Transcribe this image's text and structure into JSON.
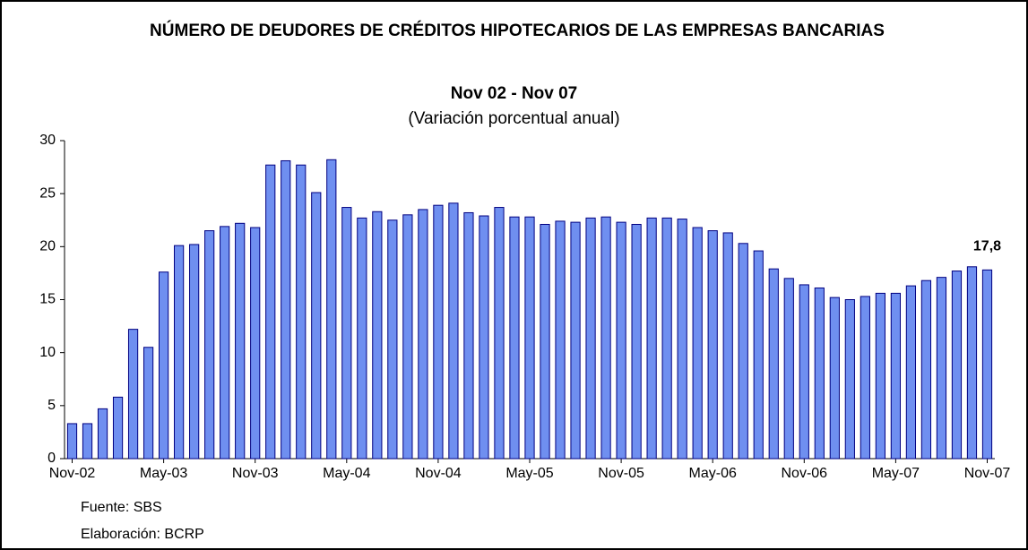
{
  "chart_data": {
    "type": "bar",
    "title": "NÚMERO DE DEUDORES DE CRÉDITOS HIPOTECARIOS DE LAS EMPRESAS BANCARIAS",
    "subtitle": "Nov 02 - Nov 07",
    "description": "(Variación porcentual anual)",
    "source": "Fuente: SBS",
    "credit": "Elaboración: BCRP",
    "categories": [
      "Nov-02",
      null,
      null,
      null,
      null,
      null,
      "May-03",
      null,
      null,
      null,
      null,
      null,
      "Nov-03",
      null,
      null,
      null,
      null,
      null,
      "May-04",
      null,
      null,
      null,
      null,
      null,
      "Nov-04",
      null,
      null,
      null,
      null,
      null,
      "May-05",
      null,
      null,
      null,
      null,
      null,
      "Nov-05",
      null,
      null,
      null,
      null,
      null,
      "May-06",
      null,
      null,
      null,
      null,
      null,
      "Nov-06",
      null,
      null,
      null,
      null,
      null,
      "May-07",
      null,
      null,
      null,
      null,
      null,
      "Nov-07"
    ],
    "values": [
      3.3,
      3.3,
      4.7,
      5.8,
      12.2,
      10.5,
      17.6,
      20.1,
      20.2,
      21.5,
      21.9,
      22.2,
      21.8,
      27.7,
      28.1,
      27.7,
      25.1,
      28.2,
      23.7,
      22.7,
      23.3,
      22.5,
      23.0,
      23.5,
      23.9,
      24.1,
      23.2,
      22.9,
      23.7,
      22.8,
      22.8,
      22.1,
      22.4,
      22.3,
      22.7,
      22.8,
      22.3,
      22.1,
      22.7,
      22.7,
      22.6,
      21.8,
      21.5,
      21.3,
      20.3,
      19.6,
      17.9,
      17.0,
      16.4,
      16.1,
      15.2,
      15.0,
      15.3,
      15.6,
      15.6,
      16.3,
      16.8,
      17.1,
      17.7,
      18.1,
      17.8
    ],
    "value_labels": [
      null,
      null,
      null,
      null,
      null,
      null,
      null,
      null,
      null,
      null,
      null,
      null,
      null,
      null,
      null,
      null,
      null,
      null,
      null,
      null,
      null,
      null,
      null,
      null,
      null,
      null,
      null,
      null,
      null,
      null,
      null,
      null,
      null,
      null,
      null,
      null,
      null,
      null,
      null,
      null,
      null,
      null,
      null,
      null,
      null,
      null,
      null,
      null,
      null,
      null,
      null,
      null,
      null,
      null,
      null,
      null,
      null,
      null,
      null,
      null,
      "17,8"
    ],
    "color": "#6f8ff0",
    "ylim": [
      0,
      30
    ],
    "yticks": [
      0,
      5,
      10,
      15,
      20,
      25,
      30
    ],
    "grid": false
  }
}
